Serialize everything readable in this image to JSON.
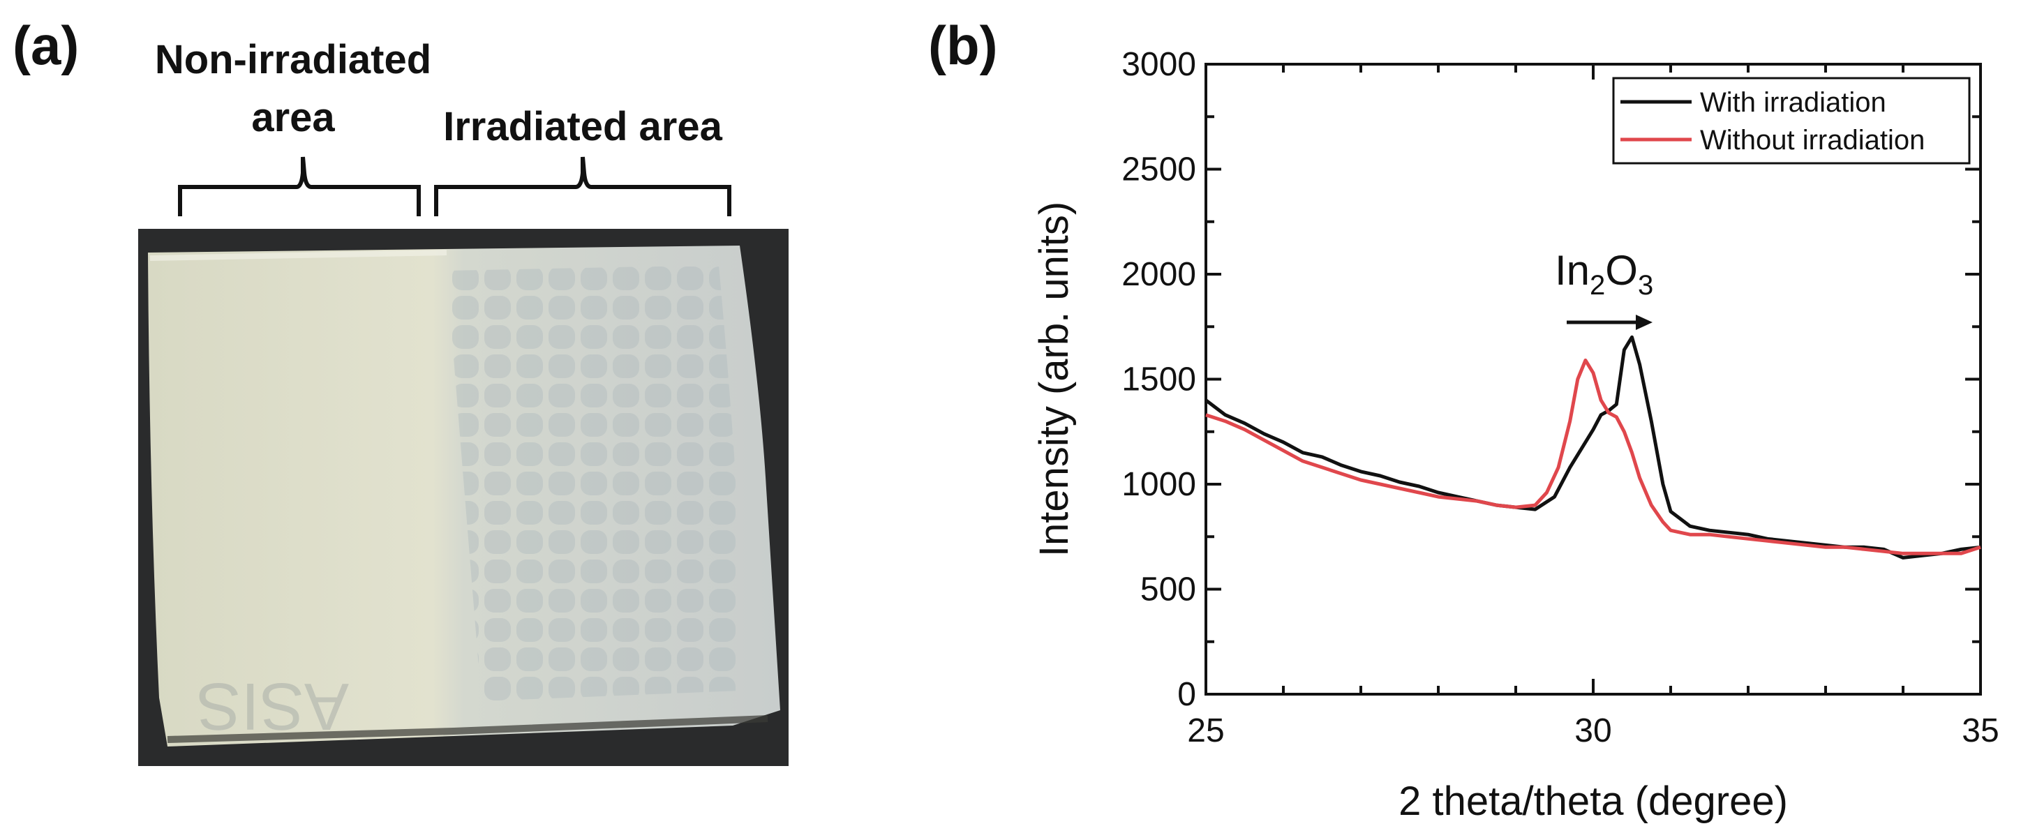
{
  "panel_a": {
    "label": "(a)",
    "caption_left_line1": "Non-irradiated",
    "caption_left_line2": "area",
    "caption_right": "Irradiated area",
    "sample_marking": "ASIS",
    "colors": {
      "background": "#2a2b2c",
      "film": "#dcdcc8",
      "irradiated_film": "#c4cbcb"
    }
  },
  "panel_b": {
    "label": "(b)",
    "annotation_main": "In",
    "annotation_sub1": "2",
    "annotation_mid": "O",
    "annotation_sub2": "3"
  },
  "chart_data": {
    "type": "line",
    "xlabel": "2 theta/theta (degree)",
    "ylabel": "Intensity (arb. units)",
    "xlim": [
      25,
      35
    ],
    "ylim": [
      0,
      3000
    ],
    "xticks": [
      25,
      30,
      35
    ],
    "yticks": [
      0,
      500,
      1000,
      1500,
      2000,
      2500,
      3000
    ],
    "legend_position": "top-right",
    "series": [
      {
        "name": "With irradiation",
        "color": "#111111",
        "x": [
          25.0,
          25.25,
          25.5,
          25.75,
          26.0,
          26.25,
          26.5,
          26.75,
          27.0,
          27.25,
          27.5,
          27.75,
          28.0,
          28.25,
          28.5,
          28.75,
          29.0,
          29.25,
          29.5,
          29.7,
          29.9,
          30.0,
          30.1,
          30.2,
          30.3,
          30.4,
          30.5,
          30.6,
          30.75,
          30.9,
          31.0,
          31.25,
          31.5,
          31.75,
          32.0,
          32.25,
          32.5,
          32.75,
          33.0,
          33.25,
          33.5,
          33.75,
          34.0,
          34.25,
          34.5,
          34.75,
          35.0
        ],
        "y": [
          1400,
          1330,
          1290,
          1240,
          1200,
          1150,
          1130,
          1090,
          1060,
          1040,
          1010,
          990,
          960,
          940,
          920,
          900,
          890,
          880,
          940,
          1080,
          1200,
          1260,
          1330,
          1350,
          1380,
          1640,
          1700,
          1570,
          1300,
          1000,
          870,
          800,
          780,
          770,
          760,
          740,
          730,
          720,
          710,
          700,
          700,
          690,
          650,
          660,
          670,
          690,
          700
        ]
      },
      {
        "name": "Without irradiation",
        "color": "#e0474c",
        "x": [
          25.0,
          25.25,
          25.5,
          25.75,
          26.0,
          26.25,
          26.5,
          26.75,
          27.0,
          27.25,
          27.5,
          27.75,
          28.0,
          28.25,
          28.5,
          28.75,
          29.0,
          29.25,
          29.4,
          29.55,
          29.7,
          29.8,
          29.9,
          30.0,
          30.1,
          30.2,
          30.3,
          30.4,
          30.5,
          30.6,
          30.75,
          30.9,
          31.0,
          31.25,
          31.5,
          31.75,
          32.0,
          32.25,
          32.5,
          32.75,
          33.0,
          33.25,
          33.5,
          33.75,
          34.0,
          34.25,
          34.5,
          34.75,
          35.0
        ],
        "y": [
          1330,
          1300,
          1260,
          1210,
          1160,
          1110,
          1080,
          1050,
          1020,
          1000,
          980,
          960,
          940,
          930,
          920,
          900,
          890,
          900,
          960,
          1080,
          1300,
          1500,
          1590,
          1530,
          1400,
          1340,
          1320,
          1250,
          1150,
          1030,
          900,
          820,
          780,
          760,
          760,
          750,
          740,
          730,
          720,
          710,
          700,
          700,
          690,
          680,
          670,
          670,
          670,
          670,
          700
        ]
      }
    ]
  }
}
